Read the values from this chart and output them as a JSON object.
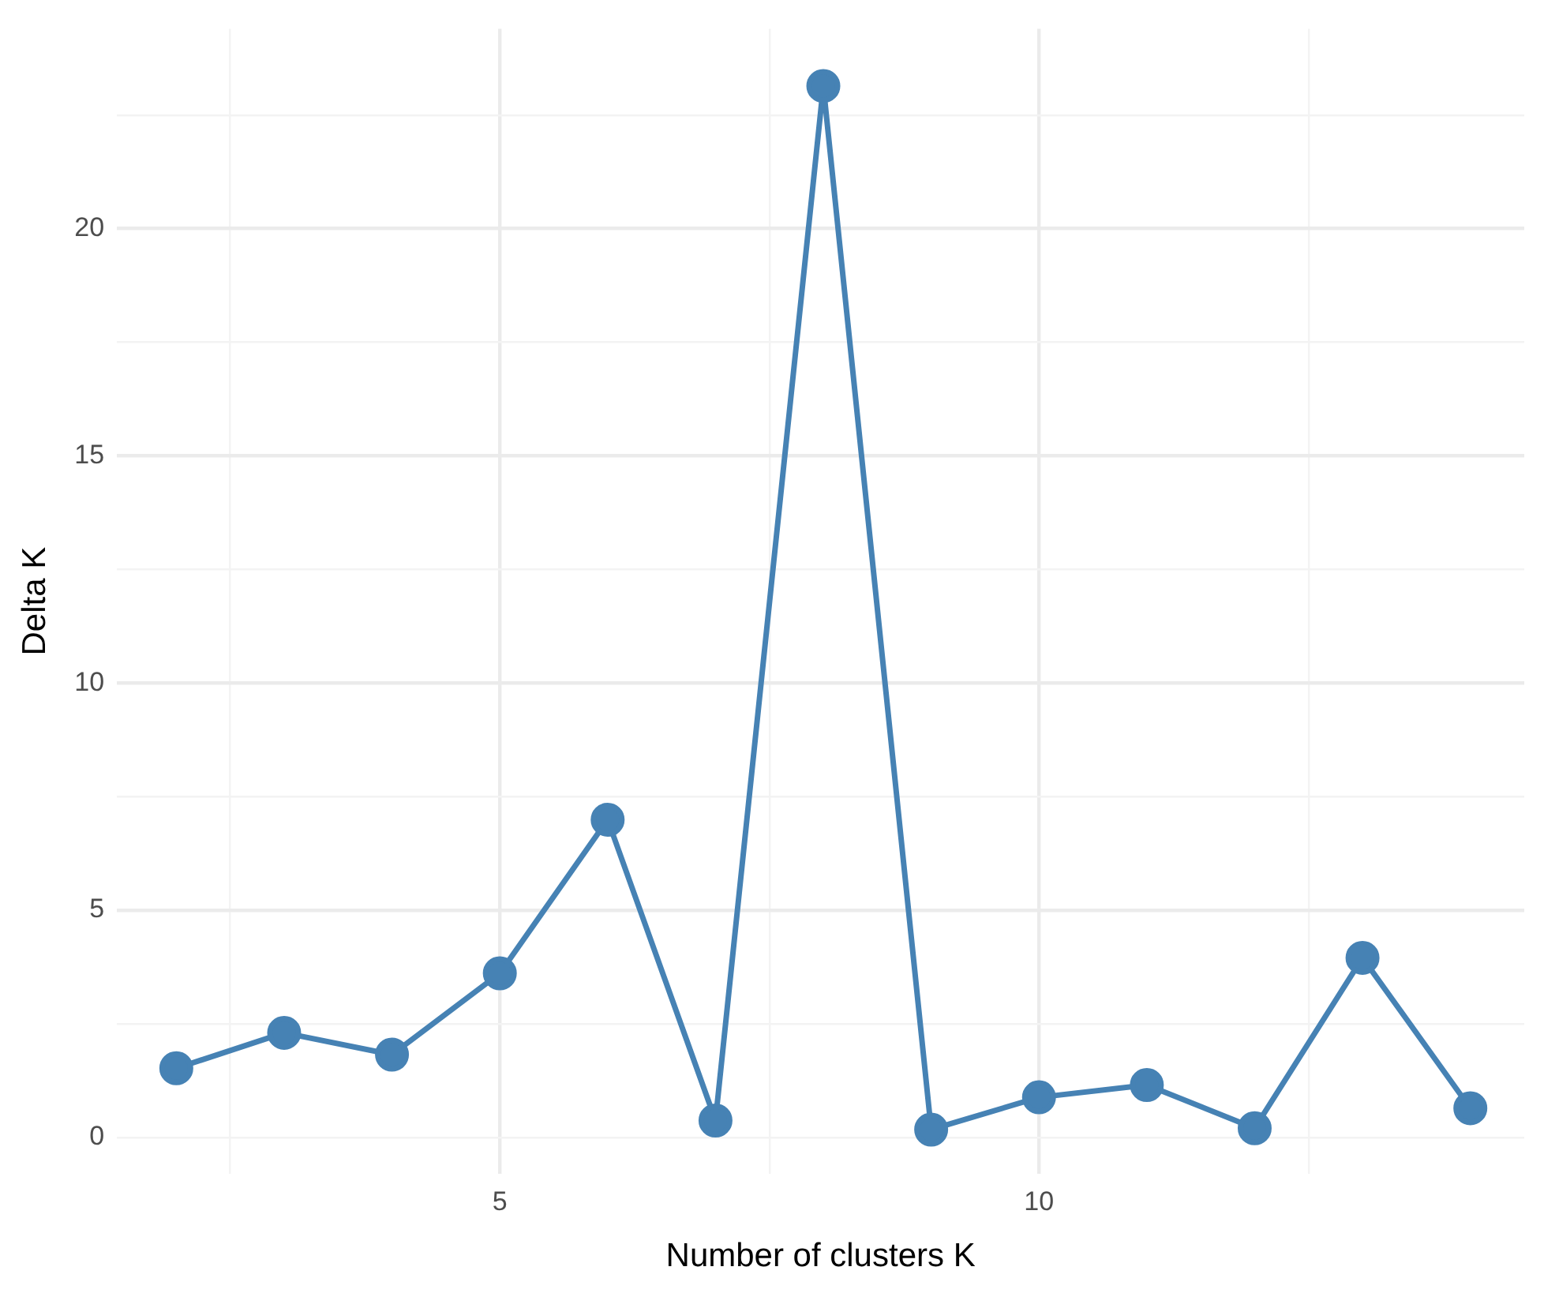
{
  "chart_data": {
    "type": "line",
    "xlabel": "Number of clusters K",
    "ylabel": "Delta K",
    "x": [
      2,
      3,
      4,
      5,
      6,
      7,
      8,
      9,
      10,
      11,
      12,
      13,
      14
    ],
    "series": [
      {
        "color": "#4682b4",
        "values": [
          1.52,
          2.3,
          1.82,
          3.61,
          6.99,
          0.37,
          23.14,
          0.17,
          0.88,
          1.15,
          0.2,
          3.95,
          0.64
        ]
      }
    ],
    "xlim": [
      1.45,
      14.5
    ],
    "ylim": [
      -0.8,
      24.4
    ],
    "xticks": [
      {
        "value": 2.5,
        "label": null
      },
      5,
      {
        "value": 7.5,
        "label": null
      },
      10,
      {
        "value": 12.5,
        "label": null
      }
    ],
    "yticks": [
      0,
      {
        "value": 2.5,
        "label": null
      },
      5,
      {
        "value": 7.5,
        "label": null
      },
      10,
      {
        "value": 12.5,
        "label": null
      },
      15,
      {
        "value": 17.5,
        "label": null
      },
      20,
      {
        "value": 22.5,
        "label": null
      }
    ],
    "grid": true,
    "marker": "circle",
    "line_style": "solid",
    "legend": false
  }
}
